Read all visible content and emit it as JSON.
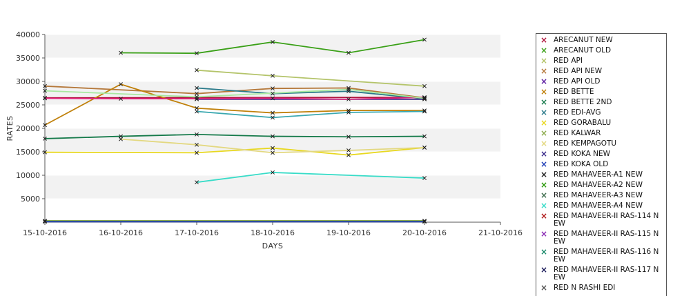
{
  "chart_data": {
    "type": "line",
    "xlabel": "DAYS",
    "ylabel": "RATES",
    "ylim": [
      0,
      40000
    ],
    "yticks": [
      5000,
      10000,
      15000,
      20000,
      25000,
      30000,
      35000,
      40000
    ],
    "ytick_labels": [
      "5000",
      "10000",
      "15000",
      "20000",
      "25000",
      "30000",
      "35000",
      "40000"
    ],
    "x_categories": [
      "15-10-2016",
      "16-10-2016",
      "17-10-2016",
      "18-10-2016",
      "19-10-2016",
      "20-10-2016",
      "21-10-2016"
    ],
    "grid": "horizontal alternating bands",
    "legend_position": "right",
    "series": [
      {
        "name": "ARECANUT NEW",
        "color": "#b0143c",
        "points": [
          [
            0,
            26500
          ],
          [
            5,
            26600
          ]
        ]
      },
      {
        "name": "ARECANUT OLD",
        "color": "#3aa017",
        "points": [
          [
            1,
            36100
          ],
          [
            2,
            36000
          ],
          [
            3,
            38400
          ],
          [
            4,
            36100
          ],
          [
            5,
            38900
          ]
        ]
      },
      {
        "name": "RED API",
        "color": "#b4c46a",
        "points": [
          [
            2,
            32400
          ],
          [
            3,
            31200
          ],
          [
            5,
            29000
          ]
        ]
      },
      {
        "name": "RED API NEW",
        "color": "#b5783a",
        "points": [
          [
            0,
            29000
          ],
          [
            2,
            27400
          ],
          [
            3,
            28500
          ],
          [
            4,
            28600
          ],
          [
            5,
            26500
          ]
        ]
      },
      {
        "name": "RED API OLD",
        "color": "#5a1aa0",
        "points": [
          [
            0,
            200
          ],
          [
            5,
            200
          ]
        ]
      },
      {
        "name": "RED BETTE",
        "color": "#c0800a",
        "points": [
          [
            0,
            20700
          ],
          [
            1,
            29400
          ],
          [
            2,
            24300
          ],
          [
            3,
            23300
          ],
          [
            4,
            23800
          ],
          [
            5,
            23800
          ]
        ]
      },
      {
        "name": "RED BETTE 2ND",
        "color": "#157a4a",
        "points": [
          [
            0,
            17800
          ],
          [
            1,
            18300
          ],
          [
            2,
            18700
          ],
          [
            3,
            18300
          ],
          [
            4,
            18200
          ],
          [
            5,
            18300
          ]
        ]
      },
      {
        "name": "RED EDI-AVG",
        "color": "#2a7a8a",
        "points": [
          [
            2,
            28600
          ],
          [
            3,
            27400
          ],
          [
            4,
            27900
          ],
          [
            5,
            26300
          ]
        ]
      },
      {
        "name": "RED GORABALU",
        "color": "#e8d820",
        "points": [
          [
            0,
            14900
          ],
          [
            2,
            14800
          ],
          [
            3,
            15800
          ],
          [
            4,
            14300
          ],
          [
            5,
            15900
          ]
        ]
      },
      {
        "name": "RED KALWAR",
        "color": "#8aaa4a",
        "points": [
          [
            0,
            300
          ],
          [
            5,
            300
          ]
        ]
      },
      {
        "name": "RED KEMPAGOTU",
        "color": "#e3d880",
        "points": [
          [
            1,
            17700
          ],
          [
            2,
            16500
          ],
          [
            3,
            14800
          ],
          [
            4,
            15300
          ],
          [
            5,
            15900
          ]
        ]
      },
      {
        "name": "RED KOKA NEW",
        "color": "#3a2a8a",
        "points": [
          [
            2,
            26200
          ],
          [
            5,
            26200
          ]
        ]
      },
      {
        "name": "RED KOKA OLD",
        "color": "#1a3ab4",
        "points": [
          [
            0,
            100
          ],
          [
            5,
            100
          ]
        ]
      },
      {
        "name": "RED MAHAVEER-A1 NEW",
        "color": "#222222",
        "points": []
      },
      {
        "name": "RED MAHAVEER-A2 NEW",
        "color": "#2a9a0a",
        "points": []
      },
      {
        "name": "RED MAHAVEER-A3 NEW",
        "color": "#3a6a4a",
        "points": []
      },
      {
        "name": "RED MAHAVEER-A4 NEW",
        "color": "#38dcc8",
        "points": [
          [
            2,
            8500
          ],
          [
            3,
            10600
          ],
          [
            5,
            9400
          ]
        ]
      },
      {
        "name": "RED MAHAVEER-II RAS-114 NEW",
        "color": "#b01a1a",
        "points": []
      },
      {
        "name": "RED MAHAVEER-II RAS-115 NEW",
        "color": "#8a2ab4",
        "points": []
      },
      {
        "name": "RED MAHAVEER-II RAS-116 NEW",
        "color": "#1a8a6a",
        "points": []
      },
      {
        "name": "RED MAHAVEER-II RAS-117 NEW",
        "color": "#1a1a5a",
        "points": []
      },
      {
        "name": "RED N RASHI EDI",
        "color": "#555555",
        "points": []
      },
      {
        "name": "",
        "color": "#e0207a",
        "points": [
          [
            0,
            26400
          ],
          [
            1,
            26300
          ],
          [
            2,
            26300
          ],
          [
            3,
            26400
          ],
          [
            4,
            26200
          ],
          [
            5,
            26600
          ]
        ]
      },
      {
        "name": "",
        "color": "#a8e8a0",
        "points": [
          [
            0,
            28000
          ],
          [
            2,
            26700
          ],
          [
            4,
            28300
          ],
          [
            5,
            26400
          ]
        ]
      },
      {
        "name": "",
        "color": "#3aa8b0",
        "points": [
          [
            2,
            23600
          ],
          [
            3,
            22300
          ],
          [
            4,
            23400
          ],
          [
            5,
            23600
          ]
        ]
      }
    ]
  }
}
